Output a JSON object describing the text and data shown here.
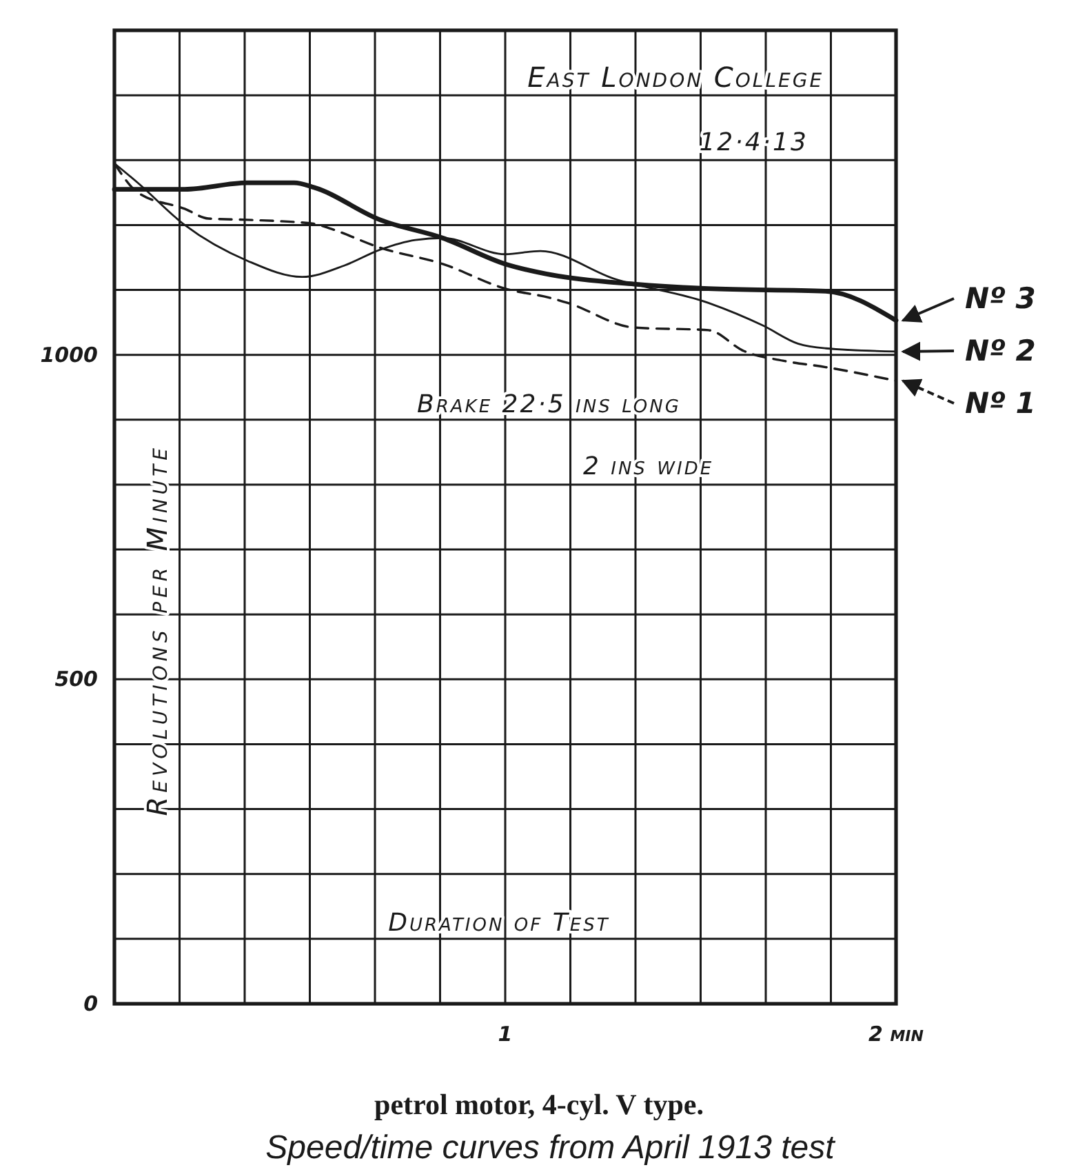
{
  "chart_data": {
    "type": "line",
    "title": "petrol motor, 4-cyl. V type.",
    "subtitle": "Speed/time curves from April 1913 test",
    "xlabel": "Duration of Test",
    "ylabel": "Revolutions per Minute",
    "annotations": [
      "East London College",
      "12·4·13",
      "Brake 22·5 ins long",
      "2 ins wide"
    ],
    "xlim": [
      0,
      2
    ],
    "ylim": [
      0,
      1500
    ],
    "xticks": [
      {
        "value": 0,
        "label": null
      },
      {
        "value": 0.1667,
        "label": null
      },
      {
        "value": 0.3333,
        "label": null
      },
      {
        "value": 0.5,
        "label": null
      },
      {
        "value": 0.6667,
        "label": null
      },
      {
        "value": 0.8333,
        "label": null
      },
      1,
      {
        "value": 1.1667,
        "label": null
      },
      {
        "value": 1.3333,
        "label": null
      },
      {
        "value": 1.5,
        "label": null
      },
      {
        "value": 1.6667,
        "label": null
      },
      {
        "value": 1.8333,
        "label": null
      },
      {
        "value": 2,
        "label": "2 min"
      }
    ],
    "yticks": [
      0,
      {
        "value": 100,
        "label": null
      },
      {
        "value": 200,
        "label": null
      },
      {
        "value": 300,
        "label": null
      },
      {
        "value": 400,
        "label": null
      },
      500,
      {
        "value": 600,
        "label": null
      },
      {
        "value": 700,
        "label": null
      },
      {
        "value": 800,
        "label": null
      },
      {
        "value": 900,
        "label": null
      },
      1000,
      {
        "value": 1100,
        "label": null
      },
      {
        "value": 1200,
        "label": null
      },
      {
        "value": 1300,
        "label": null
      },
      {
        "value": 1400,
        "label": null
      },
      {
        "value": 1500,
        "label": null
      }
    ],
    "grid": true,
    "legend": "right",
    "series": [
      {
        "name": "Nº 1",
        "color": "#1a1a1a",
        "line_style": "dashed",
        "x": [
          0,
          0.06,
          0.18,
          0.24,
          0.34,
          0.51,
          0.55,
          0.68,
          0.84,
          1.0,
          1.12,
          1.16,
          1.33,
          1.52,
          1.61,
          1.71,
          1.82,
          2.0
        ],
        "values": [
          1295,
          1250,
          1225,
          1210,
          1208,
          1202,
          1195,
          1165,
          1140,
          1102,
          1087,
          1080,
          1042,
          1038,
          1006,
          991,
          981,
          960
        ]
      },
      {
        "name": "Nº 2",
        "color": "#1a1a1a",
        "line_style": "solid",
        "x": [
          0,
          0.06,
          0.18,
          0.34,
          0.48,
          0.59,
          0.68,
          0.77,
          0.84,
          1.0,
          1.09,
          1.28,
          1.52,
          1.66,
          1.75,
          1.82,
          2.0
        ],
        "values": [
          1295,
          1265,
          1200,
          1145,
          1120,
          1138,
          1162,
          1177,
          1180,
          1155,
          1160,
          1117,
          1080,
          1045,
          1017,
          1010,
          1005
        ]
      },
      {
        "name": "Nº 3",
        "color": "#1a1a1a",
        "line_style": "solid",
        "x": [
          0,
          0.18,
          0.34,
          0.46,
          0.51,
          0.68,
          0.84,
          1.0,
          1.12,
          1.33,
          1.52,
          1.82,
          2.0
        ],
        "values": [
          1255,
          1255,
          1265,
          1265,
          1258,
          1208,
          1180,
          1140,
          1123,
          1109,
          1102,
          1098,
          1053
        ]
      }
    ]
  }
}
